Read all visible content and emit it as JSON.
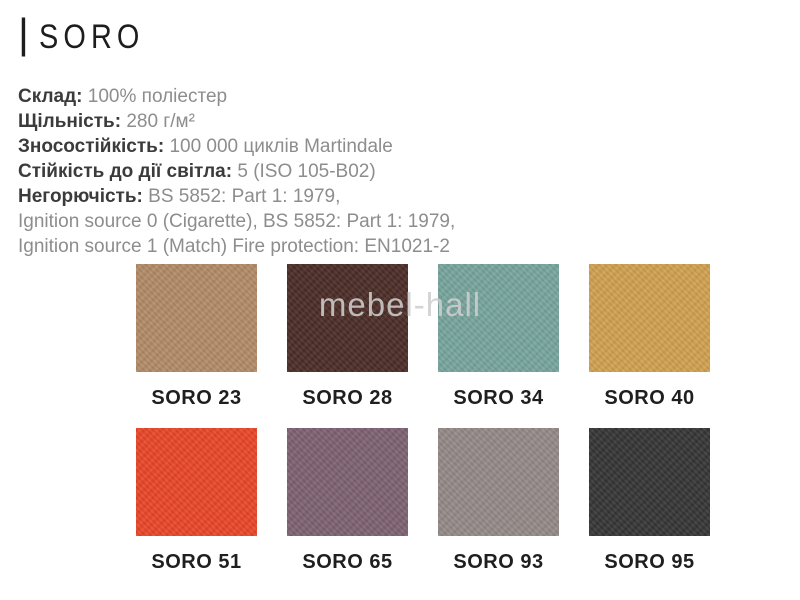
{
  "page": {
    "title_prefix": "|",
    "title": "SORO",
    "watermark": "mebel-hall"
  },
  "specs": {
    "lines": [
      {
        "label": "Склад:",
        "value": "100% поліестер"
      },
      {
        "label": "Щільність:",
        "value": "280 г/м²"
      },
      {
        "label": "Зносостійкість:",
        "value": "100 000 циклів Martindale"
      },
      {
        "label": "Стійкість до дії світла:",
        "value": "5 (ISO 105-B02)"
      },
      {
        "label": "Негорючість:",
        "value": "BS 5852: Part 1: 1979,"
      },
      {
        "label": "",
        "value": "Ignition source 0 (Cigarette), BS 5852: Part 1: 1979,"
      },
      {
        "label": "",
        "value": "Ignition source 1 (Match) Fire protection: EN1021-2"
      }
    ]
  },
  "swatches": [
    {
      "name": "SORO 23",
      "color": "#b28b68"
    },
    {
      "name": "SORO 28",
      "color": "#4c2d27"
    },
    {
      "name": "SORO 34",
      "color": "#77a59d"
    },
    {
      "name": "SORO 40",
      "color": "#d0a150"
    },
    {
      "name": "SORO 51",
      "color": "#e94728"
    },
    {
      "name": "SORO 65",
      "color": "#7e6272"
    },
    {
      "name": "SORO 93",
      "color": "#948a88"
    },
    {
      "name": "SORO 95",
      "color": "#363636"
    }
  ],
  "colors": {
    "title": "#1d1d1d",
    "spec_label": "#3b3b3b",
    "spec_value": "#8d8d8d",
    "swatch_label": "#1f1f1f",
    "watermark": "#cecece",
    "background": "#ffffff"
  }
}
